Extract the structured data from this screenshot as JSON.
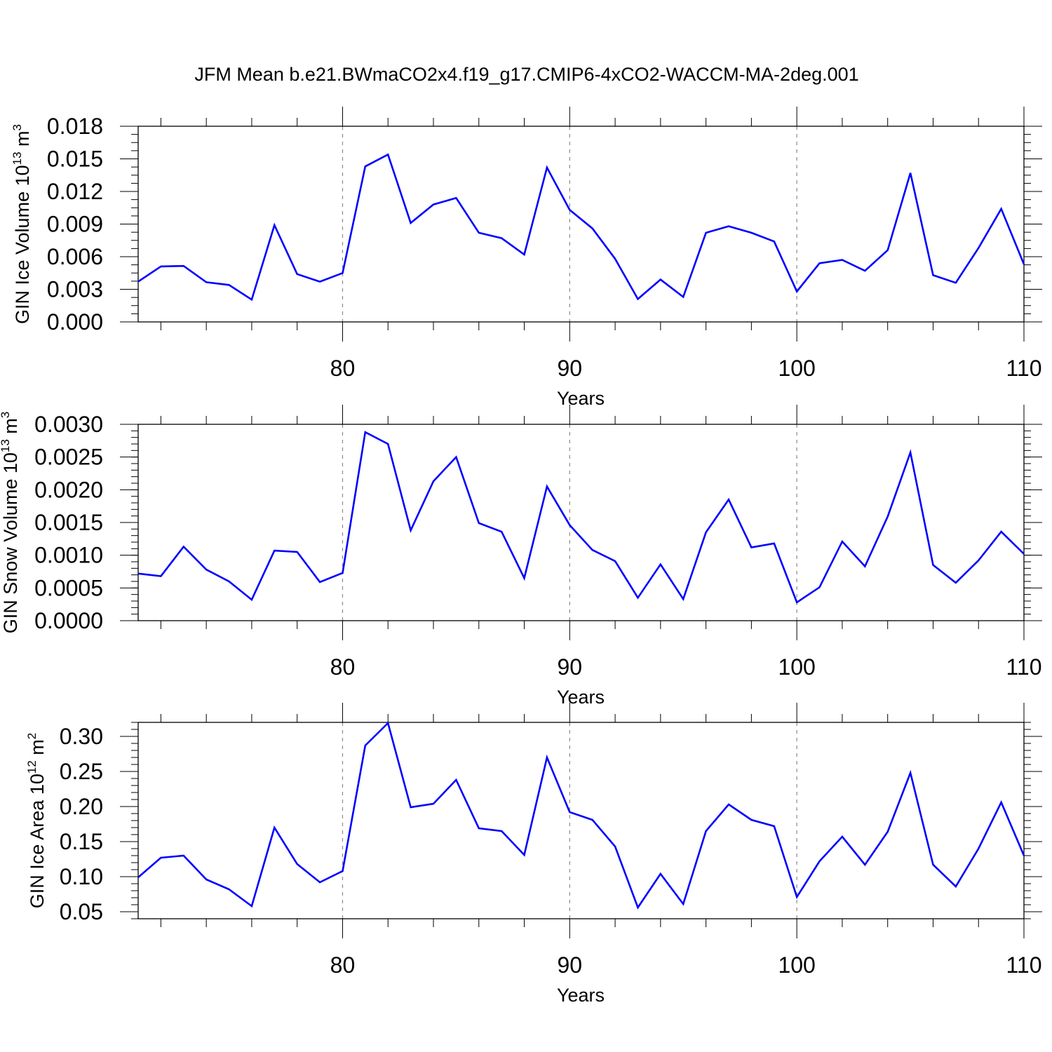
{
  "title": "JFM Mean b.e21.BWmaCO2x4.f19_g17.CMIP6-4xCO2-WACCM-MA-2deg.001",
  "series_color": "#0000ff",
  "chart_data": [
    {
      "type": "line",
      "ylabel": "GIN Ice Volume 10",
      "ylabel_exp": "13",
      "ylabel_unit": " m",
      "ylabel_unit_exp": "3",
      "xlabel": "Years",
      "xlim": [
        71,
        110
      ],
      "ylim": [
        0,
        0.018
      ],
      "x_ticks": [
        80,
        90,
        100,
        110
      ],
      "x_tick_labels": [
        "80",
        "90",
        "100",
        "110"
      ],
      "y_ticks": [
        0,
        0.003,
        0.006,
        0.009,
        0.012,
        0.015,
        0.018
      ],
      "y_tick_labels": [
        "0.000",
        "0.003",
        "0.006",
        "0.009",
        "0.012",
        "0.015",
        "0.018"
      ],
      "y_minor_step": 0.00075,
      "grid_x": [
        80,
        90,
        100
      ],
      "x": [
        71,
        72,
        73,
        74,
        75,
        76,
        77,
        78,
        79,
        80,
        81,
        82,
        83,
        84,
        85,
        86,
        87,
        88,
        89,
        90,
        91,
        92,
        93,
        94,
        95,
        96,
        97,
        98,
        99,
        100,
        101,
        102,
        103,
        104,
        105,
        106,
        107,
        108,
        109,
        110
      ],
      "values": [
        0.0037,
        0.0051,
        0.00515,
        0.00365,
        0.0034,
        0.00205,
        0.0089,
        0.0044,
        0.0037,
        0.0045,
        0.0143,
        0.0154,
        0.0091,
        0.0108,
        0.0114,
        0.0082,
        0.0077,
        0.0062,
        0.0142,
        0.0103,
        0.0086,
        0.0058,
        0.0021,
        0.0039,
        0.0023,
        0.0082,
        0.0088,
        0.0082,
        0.0074,
        0.0028,
        0.0054,
        0.0057,
        0.0047,
        0.0066,
        0.0137,
        0.0043,
        0.0036,
        0.0068,
        0.0104,
        0.0053
      ]
    },
    {
      "type": "line",
      "ylabel": "GIN Snow Volume 10",
      "ylabel_exp": "13",
      "ylabel_unit": " m",
      "ylabel_unit_exp": "3",
      "xlabel": "Years",
      "xlim": [
        71,
        110
      ],
      "ylim": [
        0,
        0.003
      ],
      "x_ticks": [
        80,
        90,
        100,
        110
      ],
      "x_tick_labels": [
        "80",
        "90",
        "100",
        "110"
      ],
      "y_ticks": [
        0,
        0.0005,
        0.001,
        0.0015,
        0.002,
        0.0025,
        0.003
      ],
      "y_tick_labels": [
        "0.0000",
        "0.0005",
        "0.0010",
        "0.0015",
        "0.0020",
        "0.0025",
        "0.0030"
      ],
      "y_minor_step": 0.0001,
      "grid_x": [
        80,
        90,
        100
      ],
      "x": [
        71,
        72,
        73,
        74,
        75,
        76,
        77,
        78,
        79,
        80,
        81,
        82,
        83,
        84,
        85,
        86,
        87,
        88,
        89,
        90,
        91,
        92,
        93,
        94,
        95,
        96,
        97,
        98,
        99,
        100,
        101,
        102,
        103,
        104,
        105,
        106,
        107,
        108,
        109,
        110
      ],
      "values": [
        0.00072,
        0.00068,
        0.00113,
        0.00078,
        0.0006,
        0.00032,
        0.00107,
        0.00105,
        0.00059,
        0.00073,
        0.00288,
        0.0027,
        0.00138,
        0.00213,
        0.0025,
        0.00149,
        0.00136,
        0.00065,
        0.00205,
        0.00146,
        0.00108,
        0.00091,
        0.00035,
        0.00086,
        0.00033,
        0.00135,
        0.00185,
        0.00112,
        0.00118,
        0.00028,
        0.00051,
        0.00121,
        0.00083,
        0.00159,
        0.00257,
        0.00085,
        0.00058,
        0.00092,
        0.00136,
        0.00102
      ]
    },
    {
      "type": "line",
      "ylabel": "GIN Ice Area 10",
      "ylabel_exp": "12",
      "ylabel_unit": " m",
      "ylabel_unit_exp": "2",
      "xlabel": "Years",
      "xlim": [
        71,
        110
      ],
      "ylim": [
        0.04,
        0.32
      ],
      "x_ticks": [
        80,
        90,
        100,
        110
      ],
      "x_tick_labels": [
        "80",
        "90",
        "100",
        "110"
      ],
      "y_ticks": [
        0.05,
        0.1,
        0.15,
        0.2,
        0.25,
        0.3
      ],
      "y_tick_labels": [
        "0.05",
        "0.10",
        "0.15",
        "0.20",
        "0.25",
        "0.30"
      ],
      "y_minor_step": 0.01,
      "grid_x": [
        80,
        90,
        100
      ],
      "x": [
        71,
        72,
        73,
        74,
        75,
        76,
        77,
        78,
        79,
        80,
        81,
        82,
        83,
        84,
        85,
        86,
        87,
        88,
        89,
        90,
        91,
        92,
        93,
        94,
        95,
        96,
        97,
        98,
        99,
        100,
        101,
        102,
        103,
        104,
        105,
        106,
        107,
        108,
        109,
        110
      ],
      "values": [
        0.099,
        0.127,
        0.13,
        0.096,
        0.082,
        0.058,
        0.17,
        0.118,
        0.092,
        0.108,
        0.287,
        0.319,
        0.199,
        0.204,
        0.238,
        0.169,
        0.165,
        0.131,
        0.27,
        0.192,
        0.181,
        0.143,
        0.056,
        0.104,
        0.061,
        0.165,
        0.203,
        0.181,
        0.172,
        0.071,
        0.122,
        0.157,
        0.117,
        0.164,
        0.248,
        0.117,
        0.086,
        0.14,
        0.206,
        0.13
      ]
    }
  ]
}
